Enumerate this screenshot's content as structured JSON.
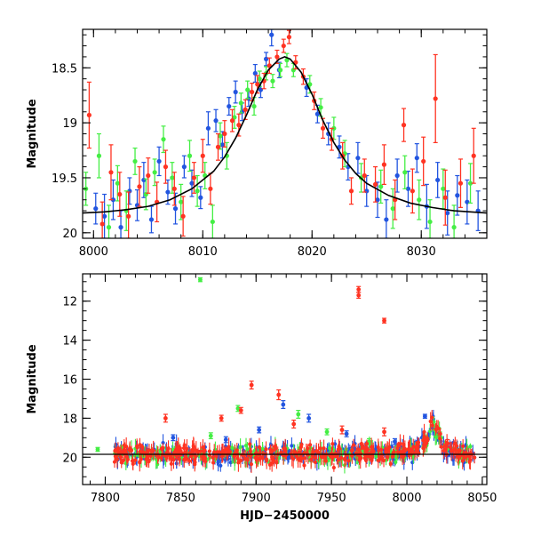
{
  "chart_data": [
    {
      "type": "scatter",
      "panel": "top",
      "title": "",
      "xlabel": "",
      "ylabel": "Magnitude",
      "xlim": [
        7999,
        8036
      ],
      "ylim": [
        20.05,
        18.15
      ],
      "y_inverted": true,
      "grid": false,
      "legend": "none",
      "x_ticks": [
        8000,
        8010,
        8020,
        8030
      ],
      "x_tick_labels": [
        "8000",
        "8010",
        "8020",
        "8030"
      ],
      "y_ticks": [
        18.5,
        19,
        19.5,
        20
      ],
      "y_tick_labels": [
        "18.5",
        "19",
        "19.5",
        "20"
      ],
      "model_curve": {
        "color": "#000000",
        "description_params": {
          "t0": 8017.3,
          "peak_mag": 18.4,
          "base_mag": 19.85,
          "width": 3.3
        },
        "points": [
          [
            7999,
            19.82
          ],
          [
            8001,
            19.81
          ],
          [
            8003,
            19.79
          ],
          [
            8005,
            19.76
          ],
          [
            8007,
            19.7
          ],
          [
            8009,
            19.6
          ],
          [
            8011,
            19.44
          ],
          [
            8012,
            19.31
          ],
          [
            8013,
            19.14
          ],
          [
            8014,
            18.93
          ],
          [
            8015,
            18.7
          ],
          [
            8016,
            18.52
          ],
          [
            8017,
            18.42
          ],
          [
            8017.5,
            18.4
          ],
          [
            8018,
            18.42
          ],
          [
            8019,
            18.54
          ],
          [
            8020,
            18.74
          ],
          [
            8021,
            18.98
          ],
          [
            8022,
            19.18
          ],
          [
            8023,
            19.34
          ],
          [
            8024,
            19.46
          ],
          [
            8025,
            19.55
          ],
          [
            8027,
            19.66
          ],
          [
            8029,
            19.73
          ],
          [
            8031,
            19.77
          ],
          [
            8033,
            19.8
          ],
          [
            8036,
            19.82
          ]
        ]
      },
      "series": [
        {
          "color": "#2255e0",
          "points": [
            [
              8000.2,
              19.78,
              0.14
            ],
            [
              8001.0,
              19.85,
              0.2
            ],
            [
              8001.8,
              19.7,
              0.18
            ],
            [
              8002.5,
              19.95,
              0.15
            ],
            [
              8003.3,
              19.62,
              0.12
            ],
            [
              8004.0,
              19.75,
              0.14
            ],
            [
              8004.6,
              19.52,
              0.16
            ],
            [
              8005.3,
              19.88,
              0.12
            ],
            [
              8006.0,
              19.35,
              0.13
            ],
            [
              8006.8,
              19.63,
              0.11
            ],
            [
              8007.5,
              19.78,
              0.14
            ],
            [
              8008.3,
              19.4,
              0.1
            ],
            [
              8009.0,
              19.55,
              0.12
            ],
            [
              8009.8,
              19.68,
              0.1
            ],
            [
              8010.5,
              19.05,
              0.15
            ],
            [
              8011.2,
              18.98,
              0.1
            ],
            [
              8011.8,
              19.2,
              0.12
            ],
            [
              8012.4,
              18.85,
              0.08
            ],
            [
              8013.0,
              18.72,
              0.1
            ],
            [
              8013.6,
              18.9,
              0.08
            ],
            [
              8014.2,
              18.78,
              0.07
            ],
            [
              8014.8,
              18.55,
              0.08
            ],
            [
              8015.3,
              18.7,
              0.07
            ],
            [
              8015.8,
              18.42,
              0.06
            ],
            [
              8016.3,
              18.2,
              0.1
            ],
            [
              8017.0,
              18.52,
              0.07
            ],
            [
              8019.5,
              18.68,
              0.08
            ],
            [
              8020.5,
              18.92,
              0.08
            ],
            [
              8021.5,
              19.1,
              0.1
            ],
            [
              8022.5,
              19.22,
              0.1
            ],
            [
              8023.3,
              19.4,
              0.12
            ],
            [
              8024.2,
              19.32,
              0.14
            ],
            [
              8025.0,
              19.62,
              0.14
            ],
            [
              8026.0,
              19.7,
              0.16
            ],
            [
              8026.8,
              19.88,
              0.18
            ],
            [
              8027.8,
              19.48,
              0.15
            ],
            [
              8028.8,
              19.6,
              0.16
            ],
            [
              8029.6,
              19.32,
              0.13
            ],
            [
              8030.5,
              19.76,
              0.2
            ],
            [
              8031.5,
              19.52,
              0.16
            ],
            [
              8032.4,
              19.82,
              0.2
            ],
            [
              8033.3,
              19.66,
              0.18
            ],
            [
              8034.2,
              19.72,
              0.2
            ],
            [
              8035.2,
              19.8,
              0.18
            ]
          ]
        },
        {
          "color": "#44ee44",
          "points": [
            [
              7999.3,
              19.6,
              0.15
            ],
            [
              8000.5,
              19.3,
              0.2
            ],
            [
              8001.4,
              19.95,
              0.2
            ],
            [
              8002.2,
              19.55,
              0.16
            ],
            [
              8003.0,
              19.8,
              0.18
            ],
            [
              8003.8,
              19.35,
              0.12
            ],
            [
              8004.8,
              19.65,
              0.14
            ],
            [
              8005.6,
              19.45,
              0.12
            ],
            [
              8006.4,
              19.15,
              0.12
            ],
            [
              8007.2,
              19.5,
              0.14
            ],
            [
              8008.0,
              19.72,
              0.16
            ],
            [
              8008.8,
              19.3,
              0.14
            ],
            [
              8009.5,
              19.62,
              0.14
            ],
            [
              8010.2,
              19.48,
              0.12
            ],
            [
              8010.9,
              19.9,
              0.15
            ],
            [
              8011.6,
              19.12,
              0.12
            ],
            [
              8012.2,
              19.3,
              0.12
            ],
            [
              8012.9,
              18.95,
              0.1
            ],
            [
              8013.5,
              18.82,
              0.09
            ],
            [
              8014.1,
              18.7,
              0.08
            ],
            [
              8014.7,
              18.85,
              0.08
            ],
            [
              8015.2,
              18.6,
              0.07
            ],
            [
              8015.8,
              18.55,
              0.06
            ],
            [
              8016.4,
              18.62,
              0.06
            ],
            [
              8017.1,
              18.52,
              0.06
            ],
            [
              8017.7,
              18.43,
              0.06
            ],
            [
              8018.3,
              18.52,
              0.06
            ],
            [
              8019.8,
              18.65,
              0.08
            ],
            [
              8020.8,
              18.86,
              0.08
            ],
            [
              8022.0,
              19.05,
              0.1
            ],
            [
              8023.0,
              19.28,
              0.12
            ],
            [
              8024.5,
              19.5,
              0.13
            ],
            [
              8026.3,
              19.58,
              0.15
            ],
            [
              8027.4,
              19.78,
              0.18
            ],
            [
              8028.5,
              19.45,
              0.15
            ],
            [
              8029.8,
              19.7,
              0.18
            ],
            [
              8030.8,
              19.9,
              0.2
            ],
            [
              8032.0,
              19.6,
              0.18
            ],
            [
              8033.0,
              19.95,
              0.2
            ],
            [
              8034.5,
              19.55,
              0.18
            ]
          ]
        },
        {
          "color": "#ff3322",
          "points": [
            [
              7999.6,
              18.93,
              0.3
            ],
            [
              8000.8,
              19.92,
              0.2
            ],
            [
              8001.6,
              19.45,
              0.25
            ],
            [
              8002.4,
              19.65,
              0.2
            ],
            [
              8003.2,
              19.85,
              0.22
            ],
            [
              8004.2,
              19.58,
              0.18
            ],
            [
              8005.0,
              19.48,
              0.16
            ],
            [
              8005.8,
              19.72,
              0.18
            ],
            [
              8006.6,
              19.4,
              0.15
            ],
            [
              8007.4,
              19.6,
              0.15
            ],
            [
              8008.2,
              19.85,
              0.18
            ],
            [
              8009.2,
              19.5,
              0.14
            ],
            [
              8010.0,
              19.3,
              0.15
            ],
            [
              8010.7,
              19.6,
              0.14
            ],
            [
              8011.4,
              19.22,
              0.12
            ],
            [
              8012.0,
              19.1,
              0.12
            ],
            [
              8012.7,
              18.98,
              0.1
            ],
            [
              8013.3,
              19.02,
              0.1
            ],
            [
              8013.9,
              18.88,
              0.09
            ],
            [
              8014.5,
              18.72,
              0.08
            ],
            [
              8015.0,
              18.65,
              0.08
            ],
            [
              8015.6,
              18.62,
              0.07
            ],
            [
              8016.1,
              18.48,
              0.07
            ],
            [
              8016.8,
              18.4,
              0.06
            ],
            [
              8017.4,
              18.3,
              0.06
            ],
            [
              8017.9,
              18.22,
              0.06
            ],
            [
              8018.5,
              18.45,
              0.06
            ],
            [
              8019.2,
              18.58,
              0.07
            ],
            [
              8020.2,
              18.8,
              0.08
            ],
            [
              8021.0,
              19.05,
              0.09
            ],
            [
              8021.8,
              19.15,
              0.1
            ],
            [
              8022.8,
              19.3,
              0.12
            ],
            [
              8023.6,
              19.62,
              0.12
            ],
            [
              8024.8,
              19.48,
              0.15
            ],
            [
              8025.8,
              19.56,
              0.16
            ],
            [
              8026.6,
              19.38,
              0.18
            ],
            [
              8027.6,
              19.7,
              0.18
            ],
            [
              8028.4,
              19.02,
              0.15
            ],
            [
              8029.2,
              19.62,
              0.2
            ],
            [
              8030.2,
              19.35,
              0.22
            ],
            [
              8031.3,
              18.78,
              0.4
            ],
            [
              8032.2,
              19.68,
              0.25
            ],
            [
              8033.6,
              19.55,
              0.22
            ],
            [
              8034.8,
              19.3,
              0.25
            ]
          ]
        }
      ]
    },
    {
      "type": "scatter",
      "panel": "bottom",
      "title": "",
      "xlabel": "HJD−2450000",
      "ylabel": "Magnitude",
      "xlim": [
        7785,
        8053
      ],
      "ylim": [
        21.4,
        10.6
      ],
      "y_inverted": true,
      "grid": false,
      "legend": "none",
      "x_ticks": [
        7800,
        7850,
        7900,
        7950,
        8000,
        8050
      ],
      "x_tick_labels": [
        "7800",
        "7850",
        "7900",
        "7950",
        "8000",
        "8050"
      ],
      "y_ticks": [
        12,
        14,
        16,
        18,
        20
      ],
      "y_tick_labels": [
        "12",
        "14",
        "16",
        "18",
        "20"
      ],
      "baseline": {
        "mag": 19.85,
        "color": "#000000"
      },
      "time_range": [
        7806,
        8045
      ],
      "event": {
        "t0": 8017.3,
        "peak_mag": 18.4,
        "base_mag": 19.85,
        "width": 3.3
      },
      "series": [
        {
          "color": "#2255e0",
          "outliers": [
            [
              7918,
              17.3,
              0.2
            ],
            [
              7902,
              18.6,
              0.15
            ],
            [
              7960,
              18.8,
              0.15
            ],
            [
              7845,
              19.0,
              0.15
            ],
            [
              8012,
              17.9,
              0.1
            ],
            [
              7935,
              18.0,
              0.2
            ],
            [
              7880,
              19.1,
              0.15
            ],
            [
              7992,
              19.2,
              0.15
            ]
          ]
        },
        {
          "color": "#44ee44",
          "outliers": [
            [
              7863,
              10.9,
              0.1
            ],
            [
              7888,
              17.5,
              0.15
            ],
            [
              7928,
              17.8,
              0.2
            ],
            [
              7795,
              19.6,
              0.1
            ],
            [
              7947,
              18.7,
              0.15
            ],
            [
              7870,
              18.9,
              0.15
            ],
            [
              7975,
              19.2,
              0.15
            ],
            [
              7812,
              19.5,
              0.1
            ]
          ]
        },
        {
          "color": "#ff3322",
          "outliers": [
            [
              7968,
              11.4,
              0.15
            ],
            [
              7968,
              11.7,
              0.15
            ],
            [
              7985,
              13.0,
              0.12
            ],
            [
              7897,
              16.3,
              0.2
            ],
            [
              7915,
              16.8,
              0.25
            ],
            [
              7840,
              18.0,
              0.2
            ],
            [
              7877,
              18.0,
              0.15
            ],
            [
              7890,
              17.6,
              0.15
            ],
            [
              7925,
              18.3,
              0.2
            ],
            [
              7957,
              18.6,
              0.2
            ],
            [
              7985,
              18.7,
              0.2
            ],
            [
              8027,
              19.3,
              0.2
            ]
          ]
        }
      ]
    }
  ]
}
